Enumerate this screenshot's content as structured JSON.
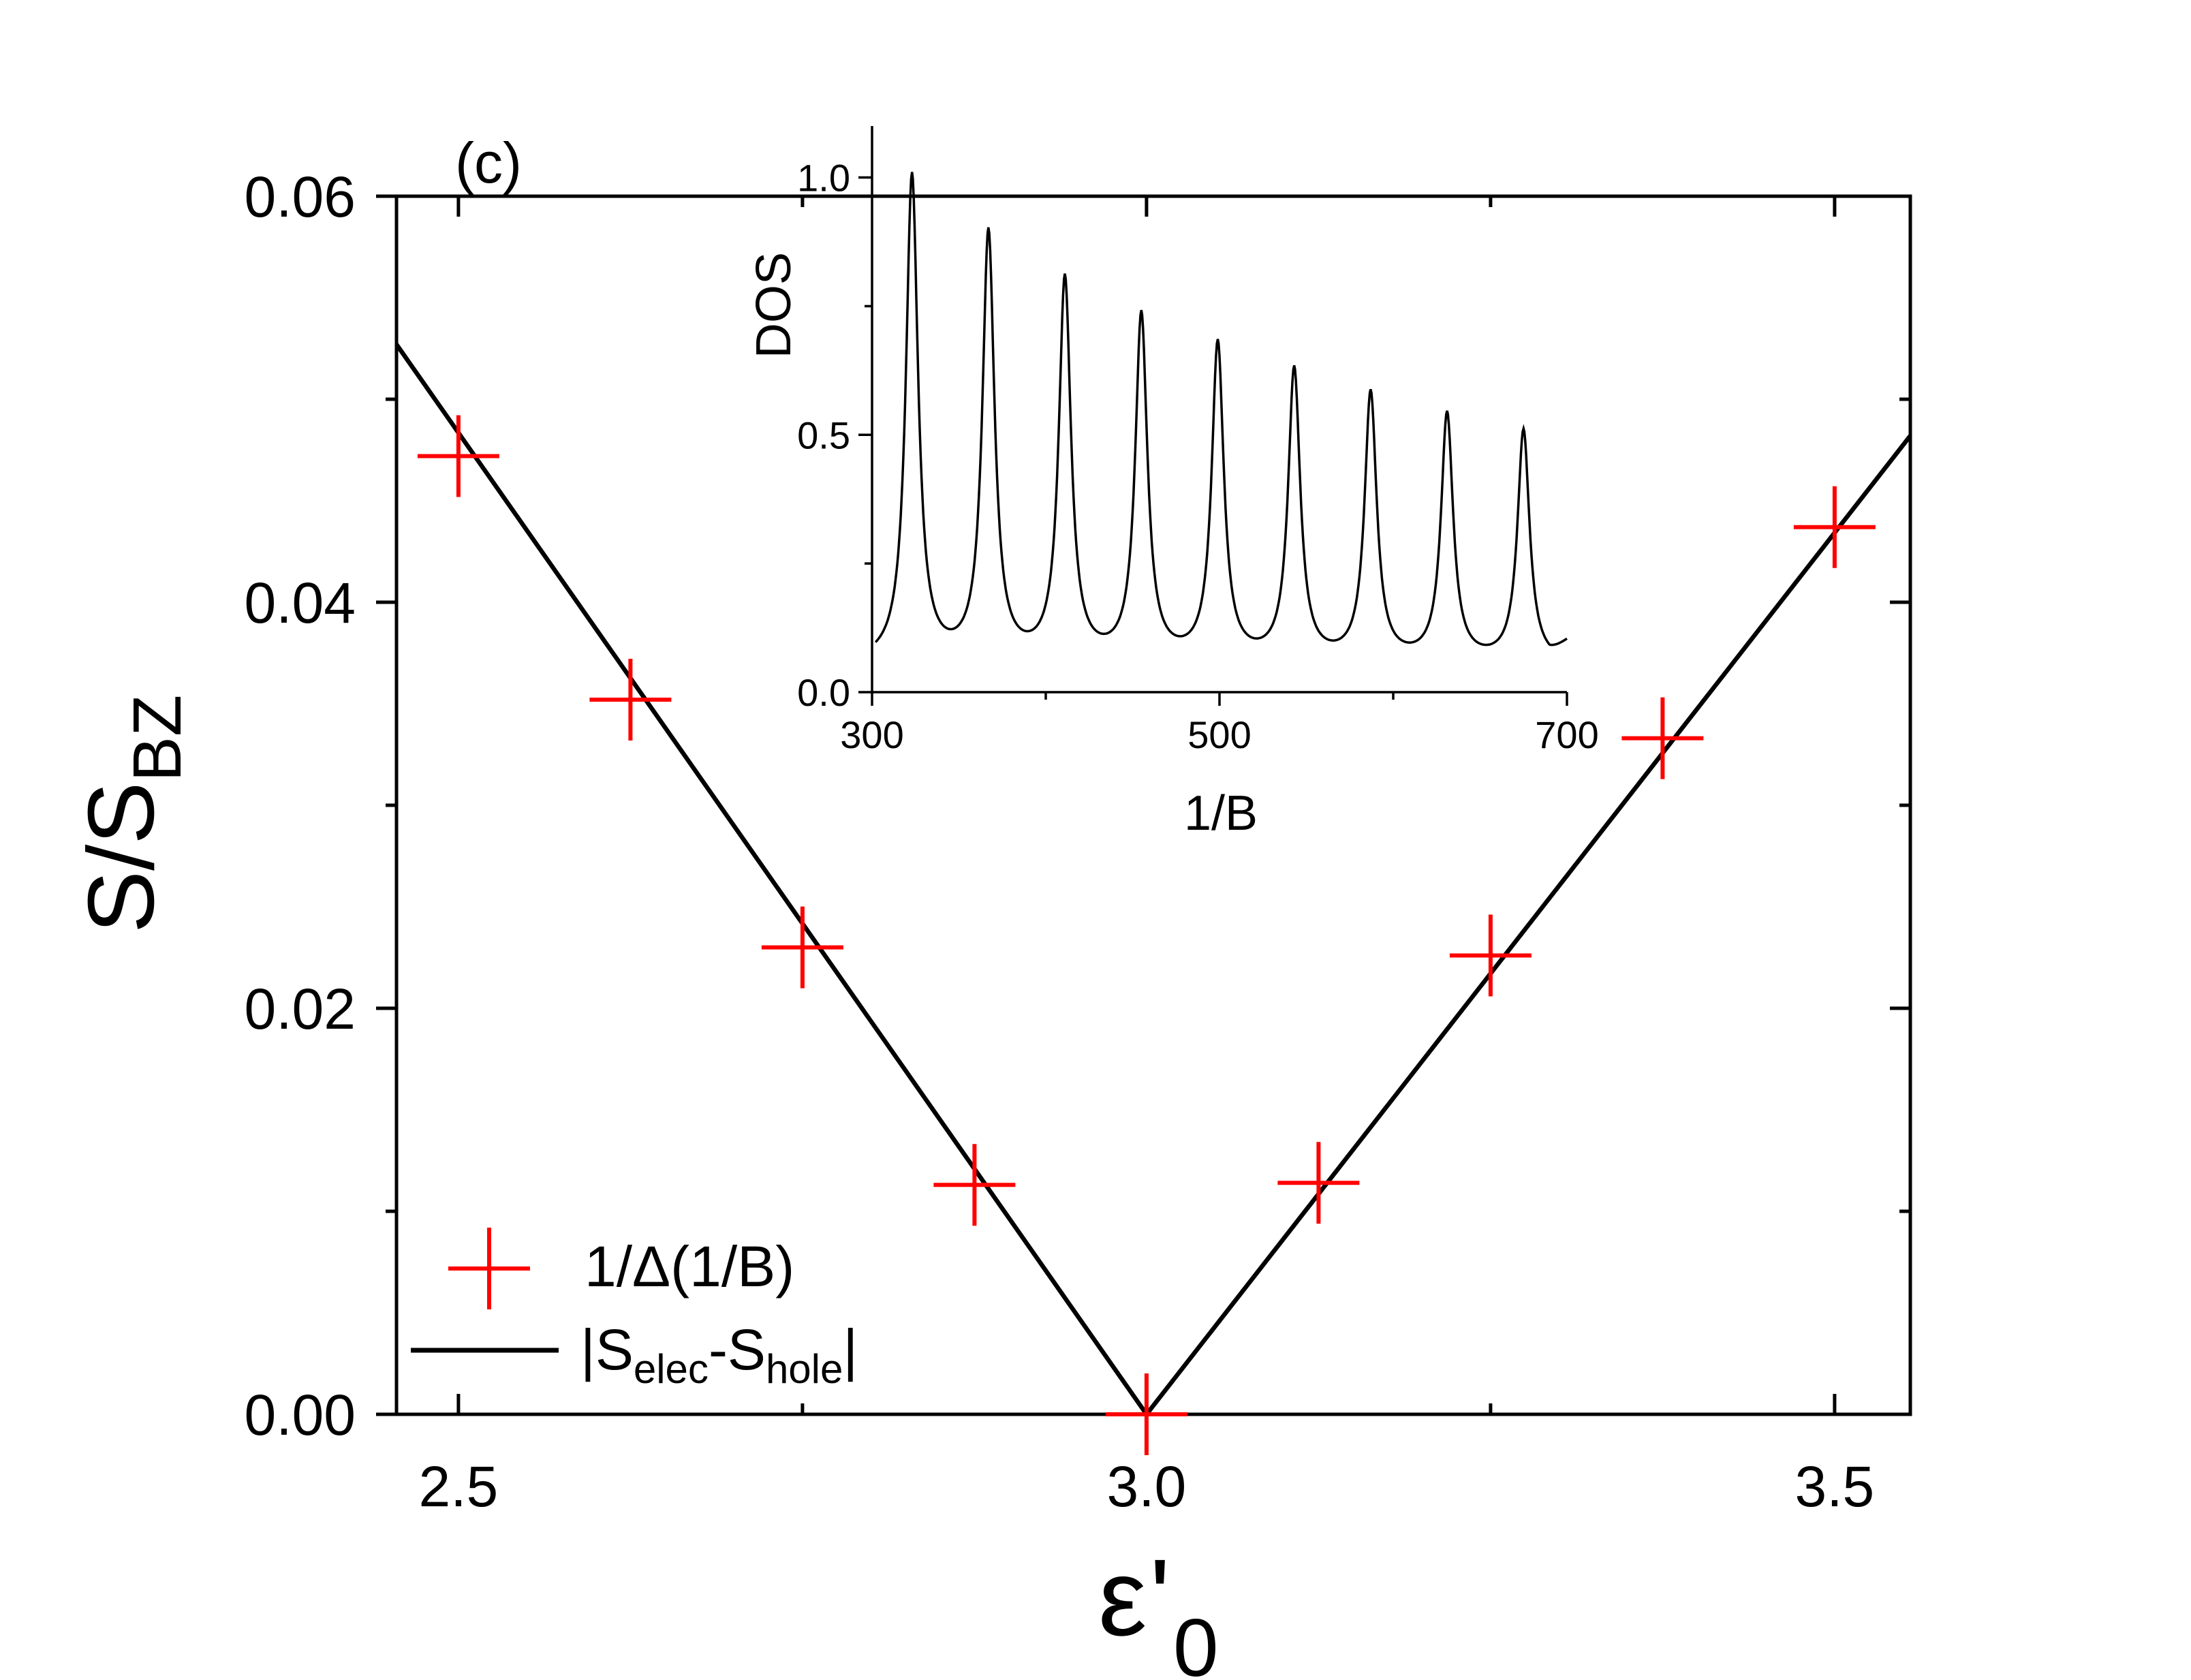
{
  "chart_data": [
    {
      "type": "line+scatter",
      "panel_label": "(c)",
      "xlabel_symbol": "ε",
      "xlabel_prime": "'",
      "xlabel_sub": "0",
      "ylabel_main": "S/S",
      "ylabel_sub": "BZ",
      "xlim": [
        2.455,
        3.555
      ],
      "ylim": [
        0.0,
        0.06
      ],
      "xticks_major": [
        2.5,
        3.0,
        3.5
      ],
      "xtick_labels": [
        "2.5",
        "3.0",
        "3.5"
      ],
      "xticks_minor": [
        2.75,
        3.25
      ],
      "yticks_major": [
        0.0,
        0.02,
        0.04,
        0.06
      ],
      "ytick_labels": [
        "0.00",
        "0.02",
        "0.04",
        "0.06"
      ],
      "yticks_minor": [
        0.01,
        0.03,
        0.05
      ],
      "legend_position": "bottom-left",
      "series": [
        {
          "name": "1/Δ(1/B)",
          "kind": "scatter",
          "marker": "plus",
          "color": "#ff0000",
          "x": [
            2.5,
            2.625,
            2.75,
            2.875,
            3.0,
            3.125,
            3.25,
            3.375,
            3.5
          ],
          "y": [
            0.0472,
            0.0352,
            0.023,
            0.0113,
            0.0,
            0.0114,
            0.0226,
            0.0333,
            0.0437
          ]
        },
        {
          "name_base": "|S",
          "name_sub1": "elec",
          "name_mid": "-S",
          "name_sub2": "hole",
          "name_end": "|",
          "kind": "line",
          "color": "#000000",
          "x": [
            2.455,
            3.0,
            3.555
          ],
          "y": [
            0.0527,
            0.0,
            0.0482
          ]
        }
      ]
    },
    {
      "type": "line",
      "inset": true,
      "xlabel": "1/B",
      "ylabel": "DOS",
      "xlim": [
        300,
        700
      ],
      "ylim": [
        0.0,
        1.1
      ],
      "xticks_major": [
        300,
        500,
        700
      ],
      "xtick_labels": [
        "300",
        "500",
        "700"
      ],
      "xticks_minor": [
        400,
        600
      ],
      "yticks_major": [
        0.0,
        0.5,
        1.0
      ],
      "ytick_labels": [
        "0.0",
        "0.5",
        "1.0"
      ],
      "yticks_minor": [
        0.25,
        0.75
      ],
      "peaks": {
        "x": [
          323,
          367,
          411,
          455,
          499,
          543,
          587,
          631,
          675
        ],
        "y": [
          1.0,
          0.885,
          0.795,
          0.725,
          0.67,
          0.62,
          0.575,
          0.535,
          0.505
        ]
      },
      "baseline": 0.055,
      "x_end": 700,
      "y_end": 0.11
    }
  ]
}
